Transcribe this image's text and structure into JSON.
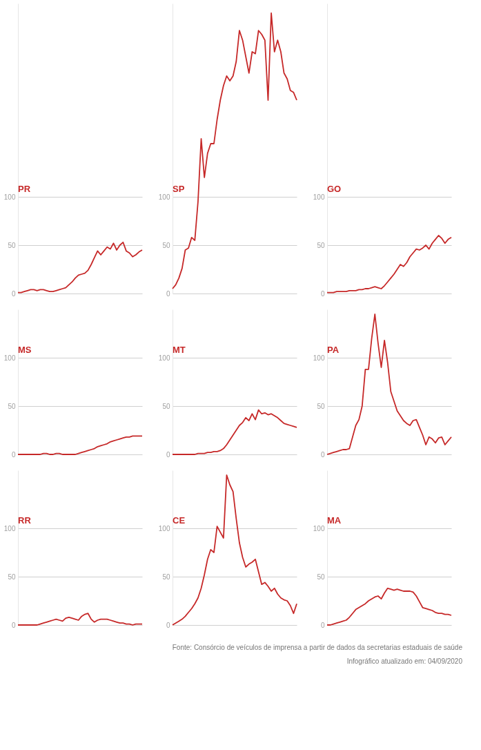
{
  "chart_data": [
    {
      "type": "line",
      "title": "PR",
      "categories": [
        null,
        null,
        null,
        null,
        null,
        null,
        null,
        null,
        null,
        null,
        null,
        null,
        null,
        null,
        null,
        null,
        null,
        null,
        null,
        null,
        null,
        null,
        null,
        null,
        null,
        null,
        null,
        null,
        null,
        null,
        null,
        null,
        null,
        null,
        null,
        null,
        null,
        null,
        null,
        null
      ],
      "values": [
        1,
        1,
        2,
        3,
        4,
        4,
        3,
        4,
        4,
        3,
        2,
        2,
        3,
        4,
        5,
        6,
        9,
        12,
        16,
        19,
        20,
        21,
        24,
        30,
        37,
        44,
        40,
        44,
        48,
        46,
        52,
        45,
        50,
        53,
        44,
        42,
        38,
        40,
        43,
        45
      ],
      "color": "#c62828",
      "ylim": [
        0,
        300
      ],
      "yticks": [
        0,
        50,
        100
      ],
      "grid": "y",
      "tick_labels": "y"
    },
    {
      "type": "line",
      "title": "SP",
      "categories": [
        null,
        null,
        null,
        null,
        null,
        null,
        null,
        null,
        null,
        null,
        null,
        null,
        null,
        null,
        null,
        null,
        null,
        null,
        null,
        null,
        null,
        null,
        null,
        null,
        null,
        null,
        null,
        null,
        null,
        null,
        null,
        null,
        null,
        null,
        null,
        null,
        null,
        null,
        null,
        null
      ],
      "values": [
        5,
        9,
        16,
        26,
        45,
        47,
        58,
        55,
        95,
        160,
        120,
        145,
        155,
        155,
        180,
        200,
        215,
        225,
        220,
        225,
        240,
        272,
        262,
        245,
        228,
        250,
        248,
        272,
        268,
        262,
        200,
        290,
        250,
        262,
        250,
        228,
        222,
        210,
        208,
        200
      ],
      "color": "#c62828",
      "ylim": [
        0,
        300
      ],
      "yticks": [
        0,
        50,
        100
      ],
      "grid": "y",
      "tick_labels": "y"
    },
    {
      "type": "line",
      "title": "GO",
      "categories": [
        null,
        null,
        null,
        null,
        null,
        null,
        null,
        null,
        null,
        null,
        null,
        null,
        null,
        null,
        null,
        null,
        null,
        null,
        null,
        null,
        null,
        null,
        null,
        null,
        null,
        null,
        null,
        null,
        null,
        null,
        null,
        null,
        null,
        null,
        null,
        null,
        null,
        null,
        null,
        null
      ],
      "values": [
        1,
        1,
        1,
        2,
        2,
        2,
        2,
        3,
        3,
        3,
        4,
        4,
        5,
        5,
        6,
        7,
        6,
        5,
        8,
        12,
        16,
        20,
        25,
        30,
        28,
        32,
        38,
        42,
        46,
        45,
        47,
        50,
        46,
        52,
        56,
        60,
        57,
        52,
        56,
        58
      ],
      "color": "#c62828",
      "ylim": [
        0,
        300
      ],
      "yticks": [
        0,
        50,
        100
      ],
      "grid": "y",
      "tick_labels": "y"
    },
    {
      "type": "line",
      "title": "MS",
      "categories": [
        null,
        null,
        null,
        null,
        null,
        null,
        null,
        null,
        null,
        null,
        null,
        null,
        null,
        null,
        null,
        null,
        null,
        null,
        null,
        null,
        null,
        null,
        null,
        null,
        null,
        null,
        null,
        null,
        null,
        null,
        null,
        null,
        null,
        null,
        null,
        null,
        null,
        null,
        null,
        null
      ],
      "values": [
        0,
        0,
        0,
        0,
        0,
        0,
        0,
        0,
        1,
        1,
        0,
        0,
        1,
        1,
        0,
        0,
        0,
        0,
        0,
        1,
        2,
        3,
        4,
        5,
        6,
        8,
        9,
        10,
        11,
        13,
        14,
        15,
        16,
        17,
        18,
        18,
        19,
        19,
        19,
        19
      ],
      "color": "#c62828",
      "ylim": [
        0,
        150
      ],
      "yticks": [
        0,
        50,
        100
      ],
      "grid": "y",
      "tick_labels": "y"
    },
    {
      "type": "line",
      "title": "MT",
      "categories": [
        null,
        null,
        null,
        null,
        null,
        null,
        null,
        null,
        null,
        null,
        null,
        null,
        null,
        null,
        null,
        null,
        null,
        null,
        null,
        null,
        null,
        null,
        null,
        null,
        null,
        null,
        null,
        null,
        null,
        null,
        null,
        null,
        null,
        null,
        null,
        null,
        null,
        null,
        null,
        null
      ],
      "values": [
        0,
        0,
        0,
        0,
        0,
        0,
        0,
        0,
        1,
        1,
        1,
        2,
        2,
        3,
        3,
        4,
        6,
        10,
        15,
        20,
        25,
        30,
        33,
        38,
        35,
        42,
        36,
        46,
        42,
        43,
        41,
        42,
        40,
        38,
        35,
        32,
        31,
        30,
        29,
        28
      ],
      "color": "#c62828",
      "ylim": [
        0,
        150
      ],
      "yticks": [
        0,
        50,
        100
      ],
      "grid": "y",
      "tick_labels": "y"
    },
    {
      "type": "line",
      "title": "PA",
      "categories": [
        null,
        null,
        null,
        null,
        null,
        null,
        null,
        null,
        null,
        null,
        null,
        null,
        null,
        null,
        null,
        null,
        null,
        null,
        null,
        null,
        null,
        null,
        null,
        null,
        null,
        null,
        null,
        null,
        null,
        null,
        null,
        null,
        null,
        null,
        null,
        null,
        null,
        null,
        null,
        null
      ],
      "values": [
        0,
        1,
        2,
        3,
        4,
        5,
        5,
        6,
        18,
        30,
        36,
        50,
        88,
        88,
        120,
        145,
        115,
        90,
        118,
        95,
        65,
        55,
        45,
        40,
        35,
        32,
        30,
        35,
        36,
        28,
        20,
        10,
        18,
        16,
        12,
        17,
        18,
        10,
        14,
        18
      ],
      "color": "#c62828",
      "ylim": [
        0,
        150
      ],
      "yticks": [
        0,
        50,
        100
      ],
      "grid": "y",
      "tick_labels": "y"
    },
    {
      "type": "line",
      "title": "RR",
      "categories": [
        null,
        null,
        null,
        null,
        null,
        null,
        null,
        null,
        null,
        null,
        null,
        null,
        null,
        null,
        null,
        null,
        null,
        null,
        null,
        null,
        null,
        null,
        null,
        null,
        null,
        null,
        null,
        null,
        null,
        null,
        null,
        null,
        null,
        null,
        null,
        null,
        null,
        null,
        null,
        null
      ],
      "values": [
        0,
        0,
        0,
        0,
        0,
        0,
        0,
        1,
        2,
        3,
        4,
        5,
        6,
        5,
        4,
        7,
        8,
        7,
        6,
        5,
        9,
        11,
        12,
        6,
        3,
        5,
        6,
        6,
        6,
        5,
        4,
        3,
        2,
        2,
        1,
        1,
        0,
        1,
        1,
        1
      ],
      "color": "#c62828",
      "ylim": [
        0,
        160
      ],
      "yticks": [
        0,
        50,
        100
      ],
      "grid": "y",
      "tick_labels": "y"
    },
    {
      "type": "line",
      "title": "CE",
      "categories": [
        null,
        null,
        null,
        null,
        null,
        null,
        null,
        null,
        null,
        null,
        null,
        null,
        null,
        null,
        null,
        null,
        null,
        null,
        null,
        null,
        null,
        null,
        null,
        null,
        null,
        null,
        null,
        null,
        null,
        null,
        null,
        null,
        null,
        null,
        null,
        null,
        null,
        null,
        null,
        null
      ],
      "values": [
        0,
        2,
        4,
        6,
        9,
        13,
        17,
        22,
        28,
        38,
        52,
        68,
        78,
        75,
        102,
        96,
        90,
        155,
        145,
        138,
        110,
        85,
        70,
        60,
        63,
        65,
        68,
        55,
        42,
        44,
        40,
        35,
        38,
        32,
        28,
        26,
        25,
        20,
        12,
        22
      ],
      "color": "#c62828",
      "ylim": [
        0,
        160
      ],
      "yticks": [
        0,
        50,
        100
      ],
      "grid": "y",
      "tick_labels": "y"
    },
    {
      "type": "line",
      "title": "MA",
      "categories": [
        null,
        null,
        null,
        null,
        null,
        null,
        null,
        null,
        null,
        null,
        null,
        null,
        null,
        null,
        null,
        null,
        null,
        null,
        null,
        null,
        null,
        null,
        null,
        null,
        null,
        null,
        null,
        null,
        null,
        null,
        null,
        null,
        null,
        null,
        null,
        null,
        null,
        null,
        null,
        null
      ],
      "values": [
        0,
        0,
        1,
        2,
        3,
        4,
        5,
        8,
        12,
        16,
        18,
        20,
        22,
        25,
        27,
        29,
        30,
        27,
        33,
        38,
        37,
        36,
        37,
        36,
        35,
        35,
        35,
        34,
        30,
        24,
        18,
        17,
        16,
        15,
        13,
        12,
        12,
        11,
        11,
        10
      ],
      "color": "#c62828",
      "ylim": [
        0,
        160
      ],
      "yticks": [
        0,
        50,
        100
      ],
      "grid": "y",
      "tick_labels": "y",
      "annotations": [
        "Fonte: Consórcio de veículos de imprensa a partir de dados da secretarias estaduais de saúde",
        "Infográfico atualizado em: 04/09/2020"
      ]
    }
  ]
}
